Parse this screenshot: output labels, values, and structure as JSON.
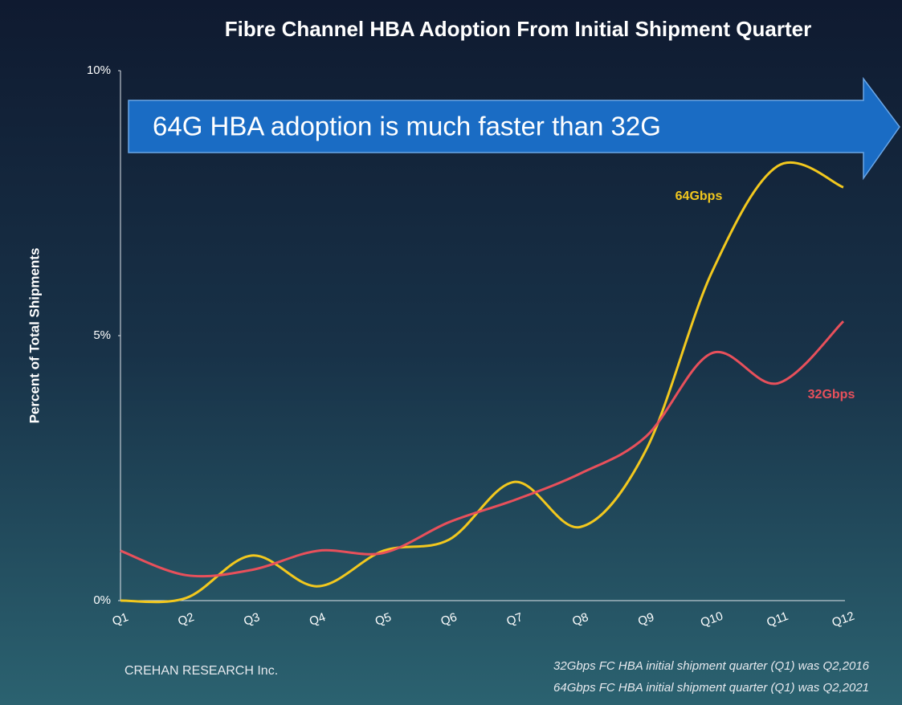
{
  "chart_data": {
    "type": "line",
    "title": "Fibre Channel HBA Adoption From Initial Shipment Quarter",
    "annotation": "64G HBA adoption is much faster than 32G",
    "y_label": "Percent of Total Shipments",
    "categories": [
      "Q1",
      "Q2",
      "Q3",
      "Q4",
      "Q5",
      "Q6",
      "Q7",
      "Q8",
      "Q9",
      "Q10",
      "Q11",
      "Q12"
    ],
    "series": [
      {
        "name": "64Gbps",
        "color": "#f2c81e",
        "values": [
          0,
          0.05,
          0.85,
          0.27,
          0.94,
          1.15,
          2.24,
          1.39,
          2.85,
          6.2,
          8.2,
          7.8
        ]
      },
      {
        "name": "32Gbps",
        "color": "#e8505b",
        "values": [
          0.94,
          0.48,
          0.58,
          0.94,
          0.9,
          1.48,
          1.9,
          2.4,
          3.1,
          4.67,
          4.1,
          5.27
        ]
      }
    ],
    "ylim": [
      0,
      10
    ],
    "yticks": [
      {
        "value": 0,
        "label": "0%"
      },
      {
        "value": 5,
        "label": "5%"
      },
      {
        "value": 10,
        "label": "10%"
      }
    ],
    "source": "CREHAN RESEARCH Inc.",
    "notes": [
      "32Gbps FC HBA initial shipment quarter (Q1) was Q2,2016",
      "64Gbps FC HBA initial shipment quarter (Q1) was Q2,2021"
    ]
  }
}
